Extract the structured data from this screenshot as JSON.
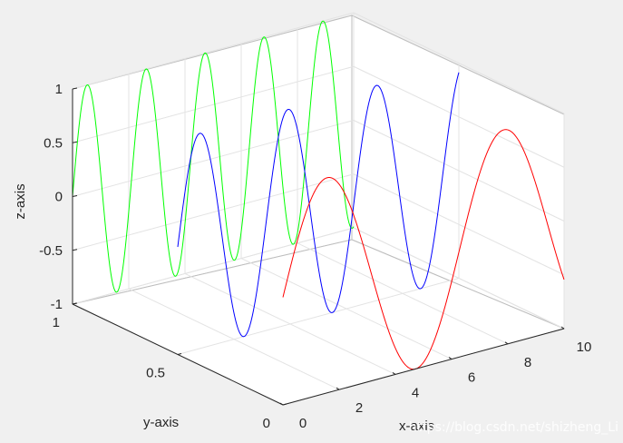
{
  "chart_data": {
    "type": "line",
    "projection": "3d",
    "grid": true,
    "xlabel": "x-axis",
    "ylabel": "y-axis",
    "zlabel": "z-axis",
    "xlim": [
      0,
      10
    ],
    "ylim": [
      0,
      1
    ],
    "zlim": [
      -1,
      1
    ],
    "x_ticks": [
      "0",
      "2",
      "4",
      "6",
      "8",
      "10"
    ],
    "y_ticks": [
      "0",
      "0.5",
      "1"
    ],
    "z_ticks": [
      "-1",
      "-0.5",
      "0",
      "0.5",
      "1"
    ],
    "series": [
      {
        "color": "#00ff00",
        "y": 1.0,
        "x_start": 0,
        "x_end": 10,
        "frequency": 3,
        "amplitude": 1
      },
      {
        "color": "#0000ff",
        "y": 0.5,
        "x_start": 0,
        "x_end": 10,
        "frequency": 2,
        "amplitude": 1
      },
      {
        "color": "#ff0000",
        "y": 0.0,
        "x_start": 0,
        "x_end": 10,
        "frequency": 1,
        "amplitude": 1
      }
    ]
  },
  "watermark": "https://blog.csdn.net/shizheng_Li"
}
